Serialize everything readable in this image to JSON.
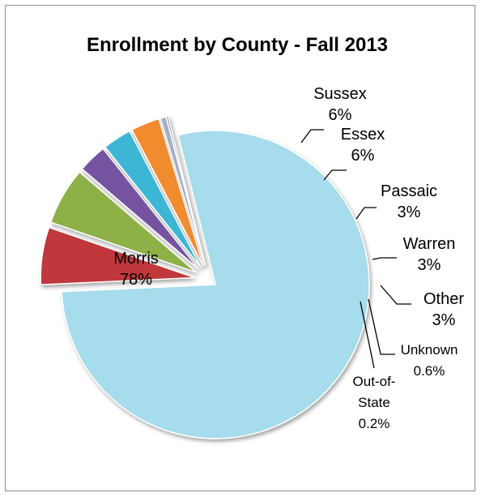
{
  "chart_data": {
    "type": "pie",
    "title": "Enrollment by County - Fall 2013",
    "slices": [
      {
        "label": "Morris",
        "value": 78,
        "value_label": "78%",
        "color": "#a6dcec"
      },
      {
        "label": "Sussex",
        "value": 6,
        "value_label": "6%",
        "color": "#c0373a"
      },
      {
        "label": "Essex",
        "value": 6,
        "value_label": "6%",
        "color": "#8db046"
      },
      {
        "label": "Passaic",
        "value": 3,
        "value_label": "3%",
        "color": "#7552a0"
      },
      {
        "label": "Warren",
        "value": 3,
        "value_label": "3%",
        "color": "#3db6d6"
      },
      {
        "label": "Other",
        "value": 3,
        "value_label": "3%",
        "color": "#f08c2e"
      },
      {
        "label": "Unknown",
        "value": 0.6,
        "value_label": "0.6%",
        "color": "#a8b3c8"
      },
      {
        "label": "Out-of-State",
        "label_lines": [
          "Out-of-",
          "State"
        ],
        "value": 0.2,
        "value_label": "0.2%",
        "color": "#6a7f99"
      }
    ],
    "legend": "none",
    "style": "3D exploded pie with leader lines"
  }
}
